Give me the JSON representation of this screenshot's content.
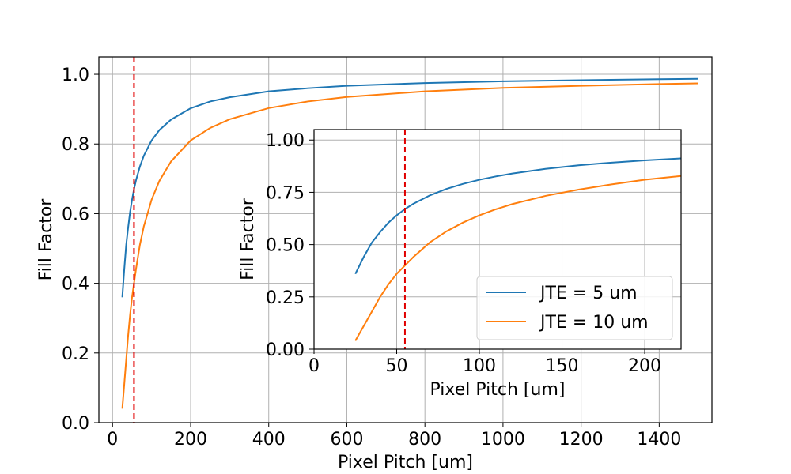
{
  "chart_data": [
    {
      "name": "main",
      "type": "line",
      "xlabel": "Pixel Pitch [um]",
      "ylabel": "Fill Factor",
      "xlim": [
        -35,
        1535
      ],
      "ylim": [
        0.0,
        1.05
      ],
      "xticks": [
        0,
        200,
        400,
        600,
        800,
        1000,
        1200,
        1400
      ],
      "yticks": [
        0.0,
        0.2,
        0.4,
        0.6,
        0.8,
        1.0
      ],
      "ytick_labels": [
        "0.0",
        "0.2",
        "0.4",
        "0.6",
        "0.8",
        "1.0"
      ],
      "grid": true,
      "vline": {
        "x": 55,
        "color": "#e00000",
        "style": "dashed"
      },
      "series": [
        {
          "name": "JTE = 5 um",
          "color": "#1f77b4",
          "x": [
            25,
            30,
            35,
            40,
            45,
            50,
            55,
            60,
            70,
            80,
            100,
            120,
            150,
            200,
            250,
            300,
            400,
            500,
            600,
            800,
            1000,
            1200,
            1400,
            1500
          ],
          "y": [
            0.36,
            0.44,
            0.51,
            0.56,
            0.605,
            0.64,
            0.67,
            0.695,
            0.735,
            0.766,
            0.81,
            0.84,
            0.87,
            0.9025,
            0.922,
            0.934,
            0.951,
            0.96,
            0.967,
            0.975,
            0.98,
            0.983,
            0.986,
            0.987
          ]
        },
        {
          "name": "JTE = 10 um",
          "color": "#ff7f0e",
          "x": [
            25,
            30,
            35,
            40,
            45,
            50,
            55,
            60,
            70,
            80,
            100,
            120,
            150,
            200,
            250,
            300,
            400,
            500,
            600,
            800,
            1000,
            1200,
            1400,
            1500
          ],
          "y": [
            0.04,
            0.11,
            0.18,
            0.25,
            0.31,
            0.36,
            0.4,
            0.44,
            0.51,
            0.563,
            0.64,
            0.694,
            0.75,
            0.81,
            0.846,
            0.871,
            0.903,
            0.922,
            0.935,
            0.951,
            0.961,
            0.967,
            0.972,
            0.974
          ]
        }
      ]
    },
    {
      "name": "inset",
      "type": "line",
      "xlabel": "Pixel Pitch [um]",
      "ylabel": "Fill Factor",
      "xlim": [
        0,
        222
      ],
      "ylim": [
        0.0,
        1.05
      ],
      "xticks": [
        0,
        50,
        100,
        150,
        200
      ],
      "yticks": [
        0.0,
        0.25,
        0.5,
        0.75,
        1.0
      ],
      "ytick_labels": [
        "0.00",
        "0.25",
        "0.50",
        "0.75",
        "1.00"
      ],
      "grid": true,
      "vline": {
        "x": 55,
        "color": "#e00000",
        "style": "dashed"
      },
      "legend": {
        "position": "lower-right",
        "entries": [
          "JTE = 5 um",
          "JTE = 10 um"
        ]
      },
      "series": [
        {
          "name": "JTE = 5 um",
          "color": "#1f77b4",
          "x": [
            25,
            30,
            35,
            40,
            45,
            50,
            55,
            60,
            70,
            80,
            90,
            100,
            110,
            120,
            140,
            160,
            180,
            200,
            222
          ],
          "y": [
            0.36,
            0.44,
            0.51,
            0.56,
            0.605,
            0.64,
            0.67,
            0.695,
            0.735,
            0.766,
            0.79,
            0.81,
            0.826,
            0.84,
            0.862,
            0.879,
            0.892,
            0.9025,
            0.912
          ]
        },
        {
          "name": "JTE = 10 um",
          "color": "#ff7f0e",
          "x": [
            25,
            30,
            35,
            40,
            45,
            50,
            55,
            60,
            70,
            80,
            90,
            100,
            110,
            120,
            140,
            160,
            180,
            200,
            222
          ],
          "y": [
            0.04,
            0.11,
            0.18,
            0.25,
            0.31,
            0.36,
            0.4,
            0.44,
            0.51,
            0.563,
            0.605,
            0.64,
            0.669,
            0.694,
            0.733,
            0.763,
            0.788,
            0.81,
            0.828
          ]
        }
      ]
    }
  ]
}
